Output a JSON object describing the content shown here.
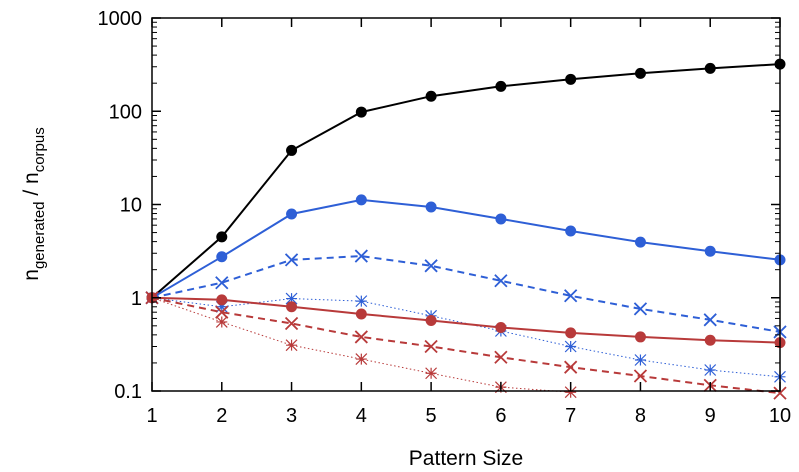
{
  "chart_data": {
    "type": "line",
    "title": "",
    "xlabel": "Pattern Size",
    "ylabel": {
      "base": "n",
      "sub_top": "generated",
      "separator": " / ",
      "base2": "n",
      "sub_bottom": "corpus"
    },
    "x": [
      1,
      2,
      3,
      4,
      5,
      6,
      7,
      8,
      9,
      10
    ],
    "xlim": [
      1,
      10
    ],
    "ylim": [
      0.1,
      1000
    ],
    "yscale": "log",
    "xticks": [
      "1",
      "2",
      "3",
      "4",
      "5",
      "6",
      "7",
      "8",
      "9",
      "10"
    ],
    "yticks": [
      {
        "value": 0.1,
        "label": "0.1"
      },
      {
        "value": 1,
        "label": "1"
      },
      {
        "value": 10,
        "label": "10"
      },
      {
        "value": 100,
        "label": "100"
      },
      {
        "value": 1000,
        "label": "1000"
      }
    ],
    "grid": false,
    "legend": "none",
    "series": [
      {
        "color": "#000000",
        "marker": "circle",
        "dash": "solid",
        "width": 2,
        "values": [
          1.0,
          4.5,
          38,
          98,
          145,
          185,
          220,
          255,
          288,
          320
        ]
      },
      {
        "color": "#2e5fd6",
        "marker": "circle",
        "dash": "solid",
        "width": 2,
        "values": [
          1.0,
          2.75,
          7.9,
          11.2,
          9.4,
          7.0,
          5.2,
          3.95,
          3.15,
          2.55
        ]
      },
      {
        "color": "#2e5fd6",
        "marker": "x",
        "dash": "dashed",
        "width": 2,
        "values": [
          1.0,
          1.45,
          2.55,
          2.8,
          2.2,
          1.52,
          1.05,
          0.76,
          0.58,
          0.43
        ]
      },
      {
        "color": "#2e5fd6",
        "marker": "star",
        "dash": "dotted",
        "width": 1,
        "values": [
          1.0,
          0.8,
          0.98,
          0.92,
          0.64,
          0.44,
          0.3,
          0.215,
          0.168,
          0.142
        ]
      },
      {
        "color": "#b83a3a",
        "marker": "circle",
        "dash": "solid",
        "width": 2,
        "values": [
          1.0,
          0.95,
          0.8,
          0.67,
          0.57,
          0.48,
          0.42,
          0.38,
          0.35,
          0.33
        ]
      },
      {
        "color": "#b83a3a",
        "marker": "x",
        "dash": "dashed",
        "width": 2,
        "values": [
          1.0,
          0.7,
          0.53,
          0.38,
          0.3,
          0.23,
          0.18,
          0.145,
          0.115,
          0.095
        ]
      },
      {
        "color": "#b83a3a",
        "marker": "star",
        "dash": "dotted",
        "width": 1,
        "values": [
          1.0,
          0.55,
          0.31,
          0.22,
          0.155,
          0.11,
          0.097,
          null,
          null,
          null
        ]
      }
    ]
  }
}
